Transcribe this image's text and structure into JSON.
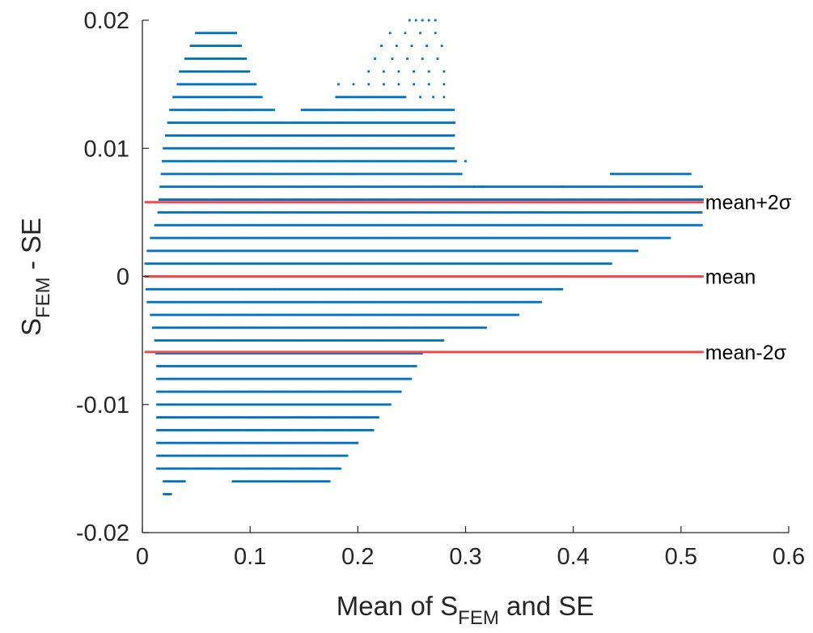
{
  "chart_data": {
    "type": "scatter",
    "title": "",
    "xlabel": {
      "main": "Mean of S",
      "sub": "FEM",
      "tail": " and SE"
    },
    "ylabel": {
      "main": "S",
      "sub": "FEM",
      "tail": " - SE"
    },
    "xlim": [
      0,
      0.6
    ],
    "ylim": [
      -0.02,
      0.02
    ],
    "xticks": [
      0,
      0.1,
      0.2,
      0.3,
      0.4,
      0.5,
      0.6
    ],
    "xtick_labels": [
      "0",
      "0.1",
      "0.2",
      "0.3",
      "0.4",
      "0.5",
      "0.6"
    ],
    "yticks": [
      -0.02,
      -0.01,
      0,
      0.01,
      0.02
    ],
    "ytick_labels": [
      "-0.02",
      "-0.01",
      "0",
      "0.01",
      "0.02"
    ],
    "grid": false,
    "point_color": "#0072BD",
    "line_color": "#F0494E",
    "reference_lines": [
      {
        "label": "mean+2σ",
        "y": 0.0058
      },
      {
        "label": "mean",
        "y": 0.0
      },
      {
        "label": "mean-2σ",
        "y": -0.0059
      }
    ],
    "reference_line_xrange": [
      0.002,
      0.521
    ],
    "series_segments": [
      {
        "y": 0.019,
        "x_ranges": [
          [
            0.05,
            0.087
          ]
        ]
      },
      {
        "y": 0.018,
        "x_ranges": [
          [
            0.045,
            0.092
          ]
        ]
      },
      {
        "y": 0.017,
        "x_ranges": [
          [
            0.04,
            0.097
          ]
        ]
      },
      {
        "y": 0.016,
        "x_ranges": [
          [
            0.035,
            0.1
          ]
        ]
      },
      {
        "y": 0.015,
        "x_ranges": [
          [
            0.033,
            0.106
          ]
        ]
      },
      {
        "y": 0.014,
        "x_ranges": [
          [
            0.029,
            0.112
          ],
          [
            0.18,
            0.245
          ]
        ]
      },
      {
        "y": 0.013,
        "x_ranges": [
          [
            0.026,
            0.122
          ],
          [
            0.148,
            0.29
          ]
        ]
      },
      {
        "y": 0.012,
        "x_ranges": [
          [
            0.024,
            0.29
          ]
        ]
      },
      {
        "y": 0.011,
        "x_ranges": [
          [
            0.022,
            0.29
          ]
        ]
      },
      {
        "y": 0.01,
        "x_ranges": [
          [
            0.02,
            0.29
          ]
        ]
      },
      {
        "y": 0.009,
        "x_ranges": [
          [
            0.019,
            0.292
          ]
        ]
      },
      {
        "y": 0.008,
        "x_ranges": [
          [
            0.018,
            0.295
          ],
          [
            0.435,
            0.51
          ]
        ]
      },
      {
        "y": 0.007,
        "x_ranges": [
          [
            0.017,
            0.52
          ]
        ]
      },
      {
        "y": 0.006,
        "x_ranges": [
          [
            0.016,
            0.52
          ]
        ]
      },
      {
        "y": 0.005,
        "x_ranges": [
          [
            0.015,
            0.52
          ]
        ]
      },
      {
        "y": 0.004,
        "x_ranges": [
          [
            0.012,
            0.52
          ]
        ]
      },
      {
        "y": 0.003,
        "x_ranges": [
          [
            0.008,
            0.49
          ]
        ]
      },
      {
        "y": 0.002,
        "x_ranges": [
          [
            0.005,
            0.46
          ]
        ]
      },
      {
        "y": 0.001,
        "x_ranges": [
          [
            0.003,
            0.435
          ]
        ]
      },
      {
        "y": 0.0,
        "x_ranges": [
          [
            0.003,
            0.41
          ]
        ]
      },
      {
        "y": -0.001,
        "x_ranges": [
          [
            0.004,
            0.39
          ]
        ]
      },
      {
        "y": -0.002,
        "x_ranges": [
          [
            0.005,
            0.37
          ]
        ]
      },
      {
        "y": -0.003,
        "x_ranges": [
          [
            0.008,
            0.35
          ]
        ]
      },
      {
        "y": -0.004,
        "x_ranges": [
          [
            0.01,
            0.32
          ]
        ]
      },
      {
        "y": -0.005,
        "x_ranges": [
          [
            0.012,
            0.28
          ]
        ]
      },
      {
        "y": -0.006,
        "x_ranges": [
          [
            0.013,
            0.26
          ]
        ]
      },
      {
        "y": -0.007,
        "x_ranges": [
          [
            0.014,
            0.255
          ]
        ]
      },
      {
        "y": -0.008,
        "x_ranges": [
          [
            0.014,
            0.25
          ]
        ]
      },
      {
        "y": -0.009,
        "x_ranges": [
          [
            0.014,
            0.24
          ]
        ]
      },
      {
        "y": -0.01,
        "x_ranges": [
          [
            0.014,
            0.23
          ]
        ]
      },
      {
        "y": -0.011,
        "x_ranges": [
          [
            0.014,
            0.22
          ]
        ]
      },
      {
        "y": -0.012,
        "x_ranges": [
          [
            0.014,
            0.215
          ]
        ]
      },
      {
        "y": -0.013,
        "x_ranges": [
          [
            0.014,
            0.2
          ]
        ]
      },
      {
        "y": -0.014,
        "x_ranges": [
          [
            0.014,
            0.19
          ]
        ]
      },
      {
        "y": -0.015,
        "x_ranges": [
          [
            0.014,
            0.185
          ]
        ]
      },
      {
        "y": -0.016,
        "x_ranges": [
          [
            0.02,
            0.04
          ],
          [
            0.084,
            0.175
          ]
        ]
      },
      {
        "y": -0.017,
        "x_ranges": [
          [
            0.02,
            0.027
          ]
        ]
      }
    ],
    "sparse_points": [
      [
        0.248,
        0.02
      ],
      [
        0.254,
        0.02
      ],
      [
        0.26,
        0.02
      ],
      [
        0.266,
        0.02
      ],
      [
        0.272,
        0.02
      ],
      [
        0.23,
        0.019
      ],
      [
        0.244,
        0.019
      ],
      [
        0.258,
        0.019
      ],
      [
        0.272,
        0.019
      ],
      [
        0.222,
        0.018
      ],
      [
        0.236,
        0.018
      ],
      [
        0.25,
        0.018
      ],
      [
        0.264,
        0.018
      ],
      [
        0.278,
        0.018
      ],
      [
        0.216,
        0.017
      ],
      [
        0.232,
        0.017
      ],
      [
        0.246,
        0.017
      ],
      [
        0.26,
        0.017
      ],
      [
        0.274,
        0.017
      ],
      [
        0.21,
        0.016
      ],
      [
        0.224,
        0.016
      ],
      [
        0.238,
        0.016
      ],
      [
        0.252,
        0.016
      ],
      [
        0.266,
        0.016
      ],
      [
        0.28,
        0.016
      ],
      [
        0.182,
        0.015
      ],
      [
        0.196,
        0.015
      ],
      [
        0.21,
        0.015
      ],
      [
        0.224,
        0.015
      ],
      [
        0.238,
        0.015
      ],
      [
        0.252,
        0.015
      ],
      [
        0.266,
        0.015
      ],
      [
        0.28,
        0.015
      ],
      [
        0.258,
        0.014
      ],
      [
        0.27,
        0.014
      ],
      [
        0.28,
        0.014
      ],
      [
        0.308,
        0.007
      ],
      [
        0.316,
        0.007
      ],
      [
        0.39,
        0.007
      ],
      [
        0.296,
        0.008
      ],
      [
        0.3,
        0.009
      ]
    ]
  }
}
